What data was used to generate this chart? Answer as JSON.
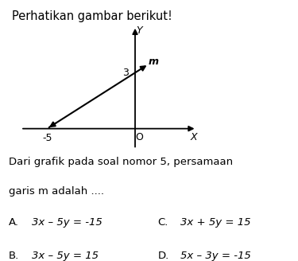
{
  "title": "Perhatikan gambar berikut!",
  "question_line1": "Dari grafik pada soal nomor 5, persamaan",
  "question_line2": "garis m adalah ....",
  "options": [
    [
      "A.",
      "3x – 5y = -15",
      "C.",
      "3x + 5y = 15"
    ],
    [
      "B.",
      "3x – 5y = 15",
      "D.",
      "5x – 3y = -15"
    ]
  ],
  "x_intercept": -5,
  "y_intercept": 3,
  "line_label": "m",
  "x_label": "X",
  "y_label": "Y",
  "origin_label": "O",
  "axis_color": "#000000",
  "line_color": "#000000",
  "bg_color": "#ffffff",
  "text_color": "#000000",
  "xlim": [
    -7.0,
    3.5
  ],
  "ylim": [
    -1.5,
    5.5
  ]
}
